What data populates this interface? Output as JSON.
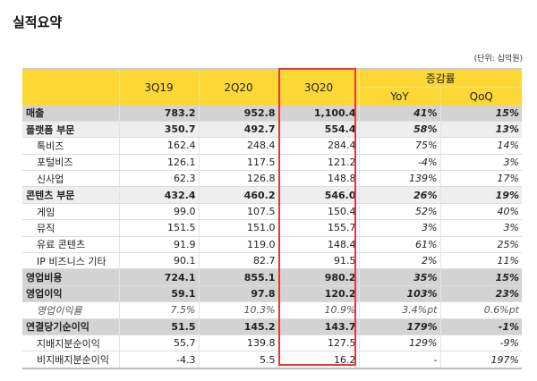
{
  "title": "실적요약",
  "unit": "(단위: 십억원)",
  "headers": {
    "c1": "3Q19",
    "c2": "2Q20",
    "c3": "3Q20",
    "change": "증감률",
    "yoy": "YoY",
    "qoq": "QoQ"
  },
  "rows": [
    {
      "label": "매출",
      "v": [
        "783.2",
        "952.8",
        "1,100.4",
        "41%",
        "15%"
      ],
      "style": "d"
    },
    {
      "label": "플랫폼 부문",
      "v": [
        "350.7",
        "492.7",
        "554.4",
        "58%",
        "13%"
      ],
      "style": "m"
    },
    {
      "label": "톡비즈",
      "v": [
        "162.4",
        "248.4",
        "284.4",
        "75%",
        "14%"
      ],
      "style": "s"
    },
    {
      "label": "포털비즈",
      "v": [
        "126.1",
        "117.5",
        "121.2",
        "-4%",
        "3%"
      ],
      "style": "s"
    },
    {
      "label": "신사업",
      "v": [
        "62.3",
        "126.8",
        "148.8",
        "139%",
        "17%"
      ],
      "style": "s"
    },
    {
      "label": "콘텐츠 부문",
      "v": [
        "432.4",
        "460.2",
        "546.0",
        "26%",
        "19%"
      ],
      "style": "m"
    },
    {
      "label": "게임",
      "v": [
        "99.0",
        "107.5",
        "150.4",
        "52%",
        "40%"
      ],
      "style": "s"
    },
    {
      "label": "뮤직",
      "v": [
        "151.5",
        "151.0",
        "155.7",
        "3%",
        "3%"
      ],
      "style": "s"
    },
    {
      "label": "유료 콘텐츠",
      "v": [
        "91.9",
        "119.0",
        "148.4",
        "61%",
        "25%"
      ],
      "style": "s"
    },
    {
      "label": "IP 비즈니스 기타",
      "v": [
        "90.1",
        "82.7",
        "91.5",
        "2%",
        "11%"
      ],
      "style": "s"
    },
    {
      "label": "영업비용",
      "v": [
        "724.1",
        "855.1",
        "980.2",
        "35%",
        "15%"
      ],
      "style": "d"
    },
    {
      "label": "영업이익",
      "v": [
        "59.1",
        "97.8",
        "120.2",
        "103%",
        "23%"
      ],
      "style": "d"
    },
    {
      "label": "영업이익률",
      "v": [
        "7.5%",
        "10.3%",
        "10.9%",
        "3.4%pt",
        "0.6%pt"
      ],
      "style": "s i"
    },
    {
      "label": "연결당기순이익",
      "v": [
        "51.5",
        "145.2",
        "143.7",
        "179%",
        "-1%"
      ],
      "style": "d"
    },
    {
      "label": "지배지분순이익",
      "v": [
        "55.7",
        "139.8",
        "127.5",
        "129%",
        "-9%"
      ],
      "style": "s"
    },
    {
      "label": "비지배지분순이익",
      "v": [
        "-4.3",
        "5.5",
        "16.2",
        "-",
        "197%"
      ],
      "style": "s"
    }
  ],
  "colors": {
    "header": "#fdd835",
    "highlight": "#e53935"
  }
}
